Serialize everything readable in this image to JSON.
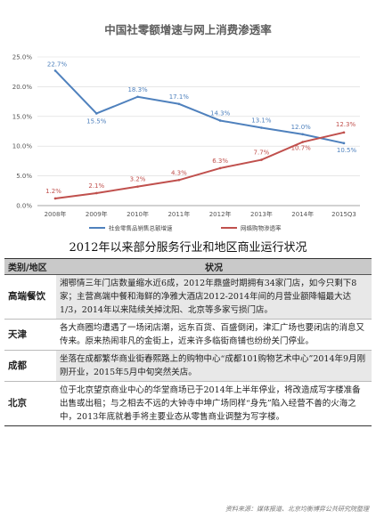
{
  "chart_data": {
    "type": "line",
    "title": "中国社零额增速与网上消费渗透率",
    "categories": [
      "2008年",
      "2009年",
      "2010年",
      "2011年",
      "2012年",
      "2013年",
      "2014年",
      "2015Q3"
    ],
    "y_ticks": [
      "25.0%",
      "20.0%",
      "15.0%",
      "10.0%",
      "5.0%",
      "0.0%"
    ],
    "ylim": [
      0,
      25
    ],
    "series": [
      {
        "name": "社会零售品销售总额增速",
        "color": "#4f81bd",
        "values": [
          22.7,
          15.5,
          18.3,
          17.1,
          14.3,
          13.1,
          12.0,
          10.5
        ],
        "labels": [
          "22.7%",
          "15.5%",
          "18.3%",
          "17.1%",
          "14.3%",
          "13.1%",
          "12.0%",
          "10.5%"
        ]
      },
      {
        "name": "网络购物渗透率",
        "color": "#c0504d",
        "values": [
          1.2,
          2.1,
          3.2,
          4.3,
          6.3,
          7.7,
          10.7,
          12.3
        ],
        "labels": [
          "1.2%",
          "2.1%",
          "3.2%",
          "4.3%",
          "6.3%",
          "7.7%",
          "10.7%",
          "12.3%"
        ]
      }
    ]
  },
  "table": {
    "title": "2012年以来部分服务行业和地区商业运行状况",
    "headers": [
      "类别/地区",
      "状况"
    ],
    "rows": [
      {
        "category": "高端餐饮",
        "text": "湘鄂情三年门店数量缩水近6成，2012年鼎盛时期拥有34家门店，如今只剩下8家；主营高端中餐和海鲜的净雅大酒店2012-2014年间的月营业额降幅最大达1/3，2014年以来陆续关掉沈阳、北京等多家亏损门店。"
      },
      {
        "category": "天津",
        "text": "各大商圈均遭遇了一场闭店潮，远东百货、百盛倒闭，津汇广场也要闭店的消息又传来。原来热闹非凡的金街上，近来许多临街商铺也纷纷关门停业。"
      },
      {
        "category": "成都",
        "text": "坐落在成都繁华商业街春熙路上的购物中心“成都101购物艺术中心”2014年9月刚刚开业，2015年5月中旬突然关店。"
      },
      {
        "category": "北京",
        "text": "位于北京望京商业中心的华堂商场已于2014年上半年停业，将改造成写字楼准备出售或出租；与之相去不远的大钟寺中坤广场同样“身先”陷入经营不善的火海之中，2013年底就着手将主要业态从零售商业调整为写字楼。"
      }
    ],
    "source": "资料来源：媒体报道、北京均衡博弈公共研究院整理"
  }
}
